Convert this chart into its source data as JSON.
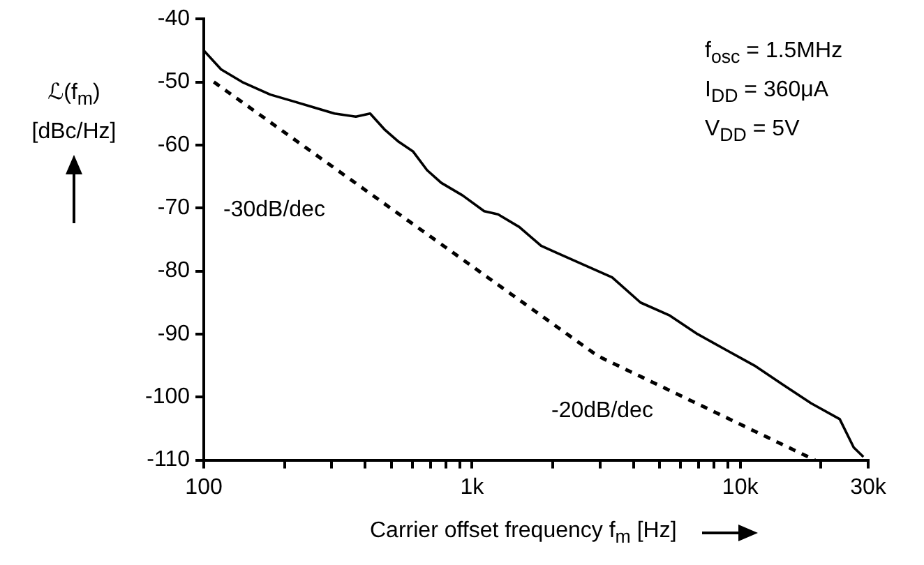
{
  "chart_data": {
    "type": "line",
    "xlabel": "Carrier offset frequency f$_{m}$ [Hz]",
    "ylabel": "ℒ(f$_{m}$) [dBc/Hz]",
    "log": "x",
    "grid": false,
    "legend": false,
    "marker": "none",
    "xlim": [
      100,
      30000
    ],
    "ylim": [
      -110,
      -40
    ],
    "xticks": [
      {
        "value": 100,
        "label": "100"
      },
      {
        "value": 200,
        "label": null
      },
      {
        "value": 300,
        "label": null
      },
      {
        "value": 400,
        "label": null
      },
      {
        "value": 500,
        "label": null
      },
      {
        "value": 600,
        "label": null
      },
      {
        "value": 700,
        "label": null
      },
      {
        "value": 800,
        "label": null
      },
      {
        "value": 900,
        "label": null
      },
      {
        "value": 1000,
        "label": "1k"
      },
      {
        "value": 2000,
        "label": null
      },
      {
        "value": 3000,
        "label": null
      },
      {
        "value": 4000,
        "label": null
      },
      {
        "value": 5000,
        "label": null
      },
      {
        "value": 6000,
        "label": null
      },
      {
        "value": 7000,
        "label": null
      },
      {
        "value": 8000,
        "label": null
      },
      {
        "value": 9000,
        "label": null
      },
      {
        "value": 10000,
        "label": "10k"
      },
      {
        "value": 20000,
        "label": null
      },
      {
        "value": 30000,
        "label": "30k"
      }
    ],
    "yticks": [
      -110,
      -100,
      -90,
      -80,
      -70,
      -60,
      -50,
      -40
    ],
    "series": [
      {
        "color": "#000000",
        "line_style": "solid",
        "x": [
          100,
          116,
          139,
          177,
          213,
          256,
          307,
          369,
          417,
          471,
          533,
          602,
          680,
          768,
          922,
          1110,
          1250,
          1500,
          1810,
          2040,
          2610,
          3330,
          4250,
          5430,
          6930,
          8840,
          11300,
          14400,
          18400,
          23500,
          26500,
          28800
        ],
        "values": [
          -45,
          -48,
          -50,
          -52,
          -53,
          -54,
          -55,
          -55.5,
          -55,
          -57.5,
          -59.5,
          -61,
          -64,
          -66,
          -68,
          -70.5,
          -71,
          -73,
          -76,
          -77,
          -79,
          -81,
          -85,
          -87,
          -90,
          -92.5,
          -95,
          -98,
          -101,
          -103.5,
          -108,
          -109.5
        ]
      },
      {
        "color": "#000000",
        "line_style": "dashed",
        "x": [
          109,
          2950,
          19000
        ],
        "values": [
          -50,
          -93.5,
          -110
        ]
      }
    ],
    "annotations": [
      "f$_{osc}$ = 1.5MHz",
      "I$_{DD}$  = 360μA",
      "V$_{DD}$ = 5V",
      "-30dB/dec",
      "-20dB/dec"
    ]
  }
}
